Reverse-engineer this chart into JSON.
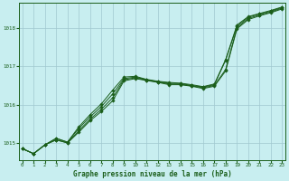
{
  "title": "Graphe pression niveau de la mer (hPa)",
  "background_color": "#c8eef0",
  "grid_color": "#a0c8d0",
  "line_color": "#1a5e1a",
  "x_ticks": [
    0,
    1,
    2,
    3,
    4,
    5,
    6,
    7,
    8,
    9,
    10,
    11,
    12,
    13,
    14,
    15,
    16,
    17,
    18,
    19,
    20,
    21,
    22,
    23
  ],
  "y_ticks": [
    1015,
    1016,
    1017,
    1018
  ],
  "ylim": [
    1014.55,
    1018.65
  ],
  "xlim": [
    -0.3,
    23.3
  ],
  "series": [
    [
      1014.85,
      1014.72,
      1014.95,
      1015.08,
      1015.0,
      1015.28,
      1015.58,
      1015.82,
      1016.1,
      1016.62,
      1016.68,
      1016.63,
      1016.58,
      1016.52,
      1016.52,
      1016.48,
      1016.42,
      1016.48,
      1016.88,
      1017.98,
      1018.22,
      1018.32,
      1018.4,
      1018.5
    ],
    [
      1014.85,
      1014.72,
      1014.95,
      1015.08,
      1015.0,
      1015.32,
      1015.62,
      1015.88,
      1016.18,
      1016.65,
      1016.7,
      1016.64,
      1016.59,
      1016.54,
      1016.53,
      1016.49,
      1016.44,
      1016.5,
      1016.92,
      1018.01,
      1018.25,
      1018.34,
      1018.42,
      1018.52
    ],
    [
      1014.85,
      1014.72,
      1014.95,
      1015.12,
      1015.02,
      1015.38,
      1015.68,
      1015.95,
      1016.28,
      1016.68,
      1016.72,
      1016.65,
      1016.6,
      1016.56,
      1016.55,
      1016.5,
      1016.46,
      1016.52,
      1017.16,
      1018.05,
      1018.28,
      1018.37,
      1018.44,
      1018.54
    ],
    [
      1014.85,
      1014.72,
      1014.95,
      1015.12,
      1015.02,
      1015.42,
      1015.74,
      1016.02,
      1016.38,
      1016.72,
      1016.74,
      1016.66,
      1016.61,
      1016.58,
      1016.56,
      1016.52,
      1016.47,
      1016.54,
      1017.18,
      1018.08,
      1018.3,
      1018.38,
      1018.46,
      1018.55
    ]
  ]
}
